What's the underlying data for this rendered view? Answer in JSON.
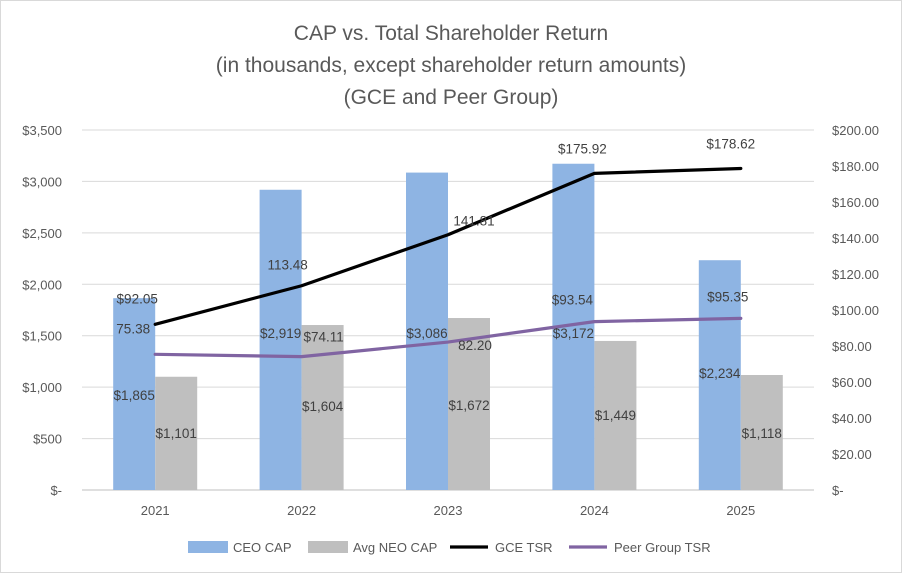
{
  "chart_data": {
    "type": "bar",
    "title": [
      "CAP vs. Total Shareholder Return",
      "(in thousands, except shareholder return amounts)",
      "(GCE and Peer Group)"
    ],
    "categories": [
      "2021",
      "2022",
      "2023",
      "2024",
      "2025"
    ],
    "series": [
      {
        "name": "CEO CAP",
        "kind": "bar",
        "axis": "left",
        "color": "#8eb4e3",
        "values": [
          1865,
          2919,
          3086,
          3172,
          2234
        ],
        "labels": [
          "$1,865",
          "$2,919",
          "$3,086",
          "$3,172",
          "$2,234"
        ]
      },
      {
        "name": "Avg NEO CAP",
        "kind": "bar",
        "axis": "left",
        "color": "#bfbfbf",
        "values": [
          1101,
          1604,
          1672,
          1449,
          1118
        ],
        "labels": [
          "$1,101",
          "$1,604",
          "$1,672",
          "$1,449",
          "$1,118"
        ]
      },
      {
        "name": "GCE TSR",
        "kind": "line",
        "axis": "right",
        "color": "#000000",
        "values": [
          92.05,
          113.48,
          141.81,
          175.92,
          178.62
        ],
        "labels": [
          "$92.05",
          "113.48",
          "141.81",
          "$175.92",
          "$178.62"
        ]
      },
      {
        "name": "Peer Group TSR",
        "kind": "line",
        "axis": "right",
        "color": "#8064a2",
        "values": [
          75.38,
          74.11,
          82.2,
          93.54,
          95.35
        ],
        "labels": [
          "75.38",
          "$74.11",
          "82.20",
          "$93.54",
          "$95.35"
        ]
      }
    ],
    "y_left": {
      "range": [
        0,
        3500
      ],
      "ticks": [
        0,
        500,
        1000,
        1500,
        2000,
        2500,
        3000,
        3500
      ],
      "tick_labels": [
        "$-",
        "$500",
        "$1,000",
        "$1,500",
        "$2,000",
        "$2,500",
        "$3,000",
        "$3,500"
      ]
    },
    "y_right": {
      "range": [
        0,
        200
      ],
      "ticks": [
        0,
        20,
        40,
        60,
        80,
        100,
        120,
        140,
        160,
        180,
        200
      ],
      "tick_labels": [
        "$-",
        "$20.00",
        "$40.00",
        "$60.00",
        "$80.00",
        "$100.00",
        "$120.00",
        "$140.00",
        "$160.00",
        "$180.00",
        "$200.00"
      ]
    },
    "grid": true,
    "legend_position": "bottom"
  }
}
